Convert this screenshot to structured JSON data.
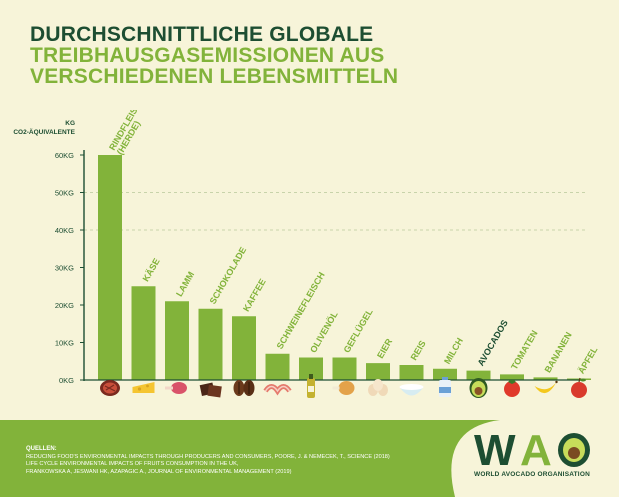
{
  "title": {
    "line1": "DURCHSCHNITTLICHE GLOBALE",
    "line2": "TREIBHAUSGASEMISSIONEN AUS",
    "line3": "VERSCHIEDENEN LEBENSMITTELN"
  },
  "chart_data": {
    "type": "bar",
    "ylabel_line1": "KG",
    "ylabel_line2": "CO2-ÄQUIVALENTE",
    "ylim": [
      0,
      60
    ],
    "yticks": [
      0,
      10,
      20,
      30,
      40,
      50,
      60
    ],
    "ytick_labels": [
      "0KG",
      "10KG",
      "20KG",
      "30KG",
      "40KG",
      "50KG",
      "60KG"
    ],
    "categories": [
      "RINDFLEISCH (HERDE)",
      "KÄSE",
      "LAMM",
      "SCHOKOLADE",
      "KAFFEE",
      "SCHWEINEFLEISCH",
      "OLIVENÖL",
      "GEFLÜGEL",
      "EIER",
      "REIS",
      "MILCH",
      "AVOCADOS",
      "TOMATEN",
      "BANANEN",
      "ÄPFEL"
    ],
    "values": [
      60,
      25,
      21,
      19,
      17,
      7,
      6,
      6,
      4.5,
      4,
      3,
      2.5,
      1.5,
      0.7,
      0.4
    ],
    "highlight": "AVOCADOS",
    "grid": "dashed, 40kg and 50kg",
    "colors": {
      "bar": "#82b33a",
      "highlight_label": "#1d4e32",
      "label": "#82b33a",
      "axis": "#1d4e32"
    }
  },
  "icons": [
    "steak-icon",
    "cheese-icon",
    "lamb-chop-icon",
    "chocolate-icon",
    "coffee-beans-icon",
    "bacon-icon",
    "olive-oil-icon",
    "chicken-leg-icon",
    "eggs-icon",
    "rice-bowl-icon",
    "milk-icon",
    "avocado-icon",
    "tomato-icon",
    "banana-icon",
    "apple-icon"
  ],
  "footer": {
    "sources_heading": "QUELLEN:",
    "sources": [
      "REDUCING FOOD'S ENVIRONMENTAL IMPACTS THROUGH PRODUCERS AND CONSUMERS, POORE, J. & NEMECEK, T., SCIENCE (2018)",
      "LIFE CYCLE ENVIRONMENTAL IMPACTS OF FRUITS CONSUMPTION IN THE UK,",
      "FRANKOWSKA A, JESWANI HK, AZAPAGIC A., JOURNAL OF ENVIRONMENTAL MANAGEMENT (2019)"
    ],
    "logo_text": "WAO",
    "logo_name": "WORLD AVOCADO ORGANISATION"
  }
}
